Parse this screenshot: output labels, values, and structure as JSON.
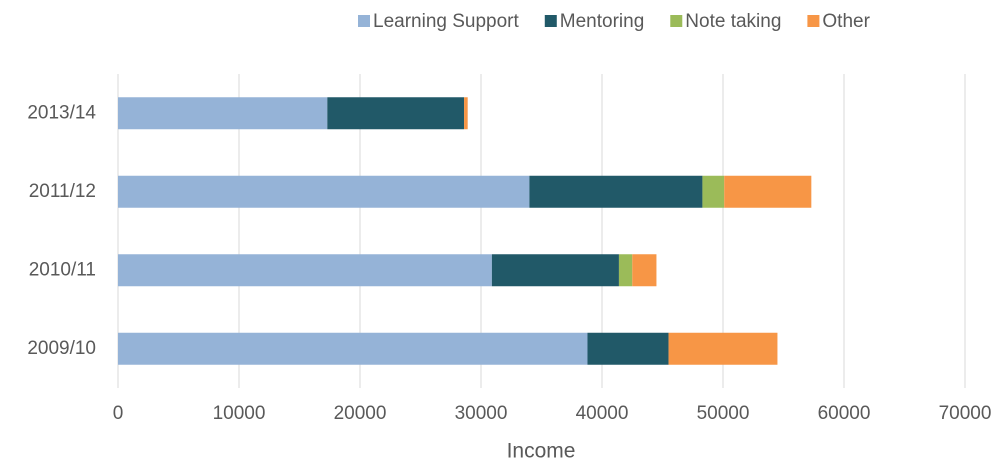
{
  "chart_data": {
    "type": "stacked-barh",
    "categories": [
      "2013/14",
      "2011/12",
      "2010/11",
      "2009/10"
    ],
    "series": [
      {
        "name": "Learning Support",
        "color": "#95b3d7",
        "values": [
          17300,
          34000,
          30900,
          38800
        ]
      },
      {
        "name": "Mentoring",
        "color": "#215968",
        "values": [
          11300,
          14300,
          10500,
          6700
        ]
      },
      {
        "name": "Note taking",
        "color": "#9bbb59",
        "values": [
          0,
          1800,
          1100,
          0
        ]
      },
      {
        "name": "Other",
        "color": "#f79646",
        "values": [
          300,
          7200,
          2000,
          9000
        ]
      }
    ],
    "xlabel": "Income",
    "xlim": [
      0,
      70000
    ],
    "xticks": [
      0,
      10000,
      20000,
      30000,
      40000,
      50000,
      60000,
      70000
    ],
    "grid": true,
    "legend": "top"
  }
}
